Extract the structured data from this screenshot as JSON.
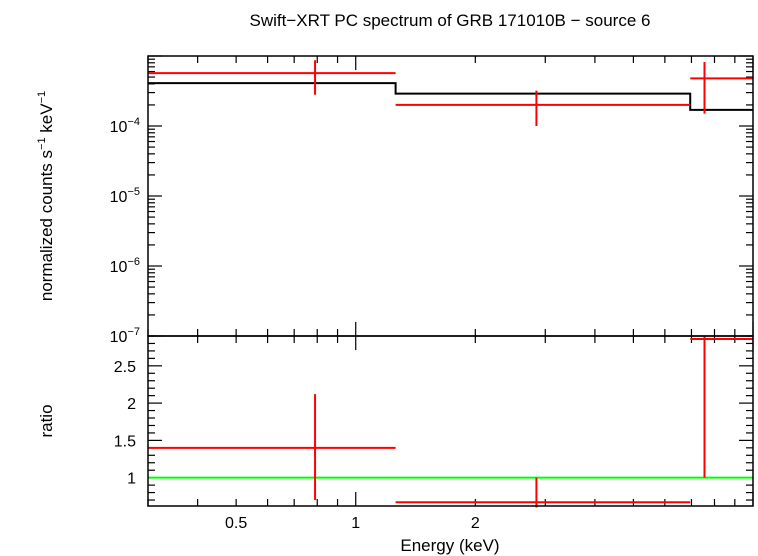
{
  "chart_data": [
    {
      "type": "line",
      "title": "Swift−XRT PC spectrum of GRB 171010B − source 6",
      "xlabel": "",
      "ylabel_main": "normalized counts s",
      "ylabel_exp1": "−1",
      "ylabel_mid": " keV",
      "ylabel_exp2": "−1",
      "x_scale": "log",
      "y_scale": "log",
      "xlim": [
        0.3,
        10
      ],
      "ylim": [
        1e-07,
        0.001
      ],
      "y_ticks": [
        {
          "value": 0.0001,
          "base": "10",
          "exp": "−4"
        },
        {
          "value": 1e-05,
          "base": "10",
          "exp": "−5"
        },
        {
          "value": 1e-06,
          "base": "10",
          "exp": "−6"
        },
        {
          "value": 1e-07,
          "base": "10",
          "exp": "−7"
        }
      ],
      "series": [
        {
          "kind": "data",
          "color": "#ff0000",
          "points": [
            {
              "x": 0.79,
              "xlo": 0.3,
              "xhi": 1.26,
              "y": 0.00057,
              "ylo": 0.00028,
              "yhi": 0.00087
            },
            {
              "x": 2.85,
              "xlo": 1.26,
              "xhi": 6.95,
              "y": 0.0002,
              "ylo": 0.0001,
              "yhi": 0.00032
            },
            {
              "x": 7.55,
              "xlo": 6.95,
              "xhi": 10,
              "y": 0.00048,
              "ylo": 0.00015,
              "yhi": 0.00082
            }
          ]
        },
        {
          "kind": "model",
          "color": "#000000",
          "steps": [
            {
              "xlo": 0.3,
              "xhi": 1.26,
              "y": 0.00041
            },
            {
              "xlo": 1.26,
              "xhi": 6.95,
              "y": 0.00029
            },
            {
              "xlo": 6.95,
              "xhi": 10,
              "y": 0.00017
            }
          ]
        }
      ]
    },
    {
      "type": "line",
      "xlabel": "Energy (keV)",
      "ylabel": "ratio",
      "x_scale": "log",
      "y_scale": "linear",
      "xlim": [
        0.3,
        10
      ],
      "ylim": [
        0.62,
        2.9
      ],
      "x_ticks": [
        {
          "value": 0.5,
          "label": "0.5"
        },
        {
          "value": 1,
          "label": "1"
        },
        {
          "value": 2,
          "label": "2"
        }
      ],
      "y_ticks": [
        {
          "value": 1,
          "label": "1"
        },
        {
          "value": 1.5,
          "label": "1.5"
        },
        {
          "value": 2,
          "label": "2"
        },
        {
          "value": 2.5,
          "label": "2.5"
        }
      ],
      "reference_line": {
        "y": 1,
        "color": "#00ff00"
      },
      "series": [
        {
          "kind": "data",
          "color": "#ff0000",
          "points": [
            {
              "x": 0.79,
              "xlo": 0.3,
              "xhi": 1.26,
              "y": 1.4,
              "ylo": 0.7,
              "yhi": 2.12
            },
            {
              "x": 2.85,
              "xlo": 1.26,
              "xhi": 6.95,
              "y": 0.67,
              "ylo": 0.6,
              "yhi": 1.0
            },
            {
              "x": 7.55,
              "xlo": 6.95,
              "xhi": 10,
              "y": 2.86,
              "ylo": 1.0,
              "yhi": 2.9
            }
          ]
        }
      ]
    }
  ]
}
